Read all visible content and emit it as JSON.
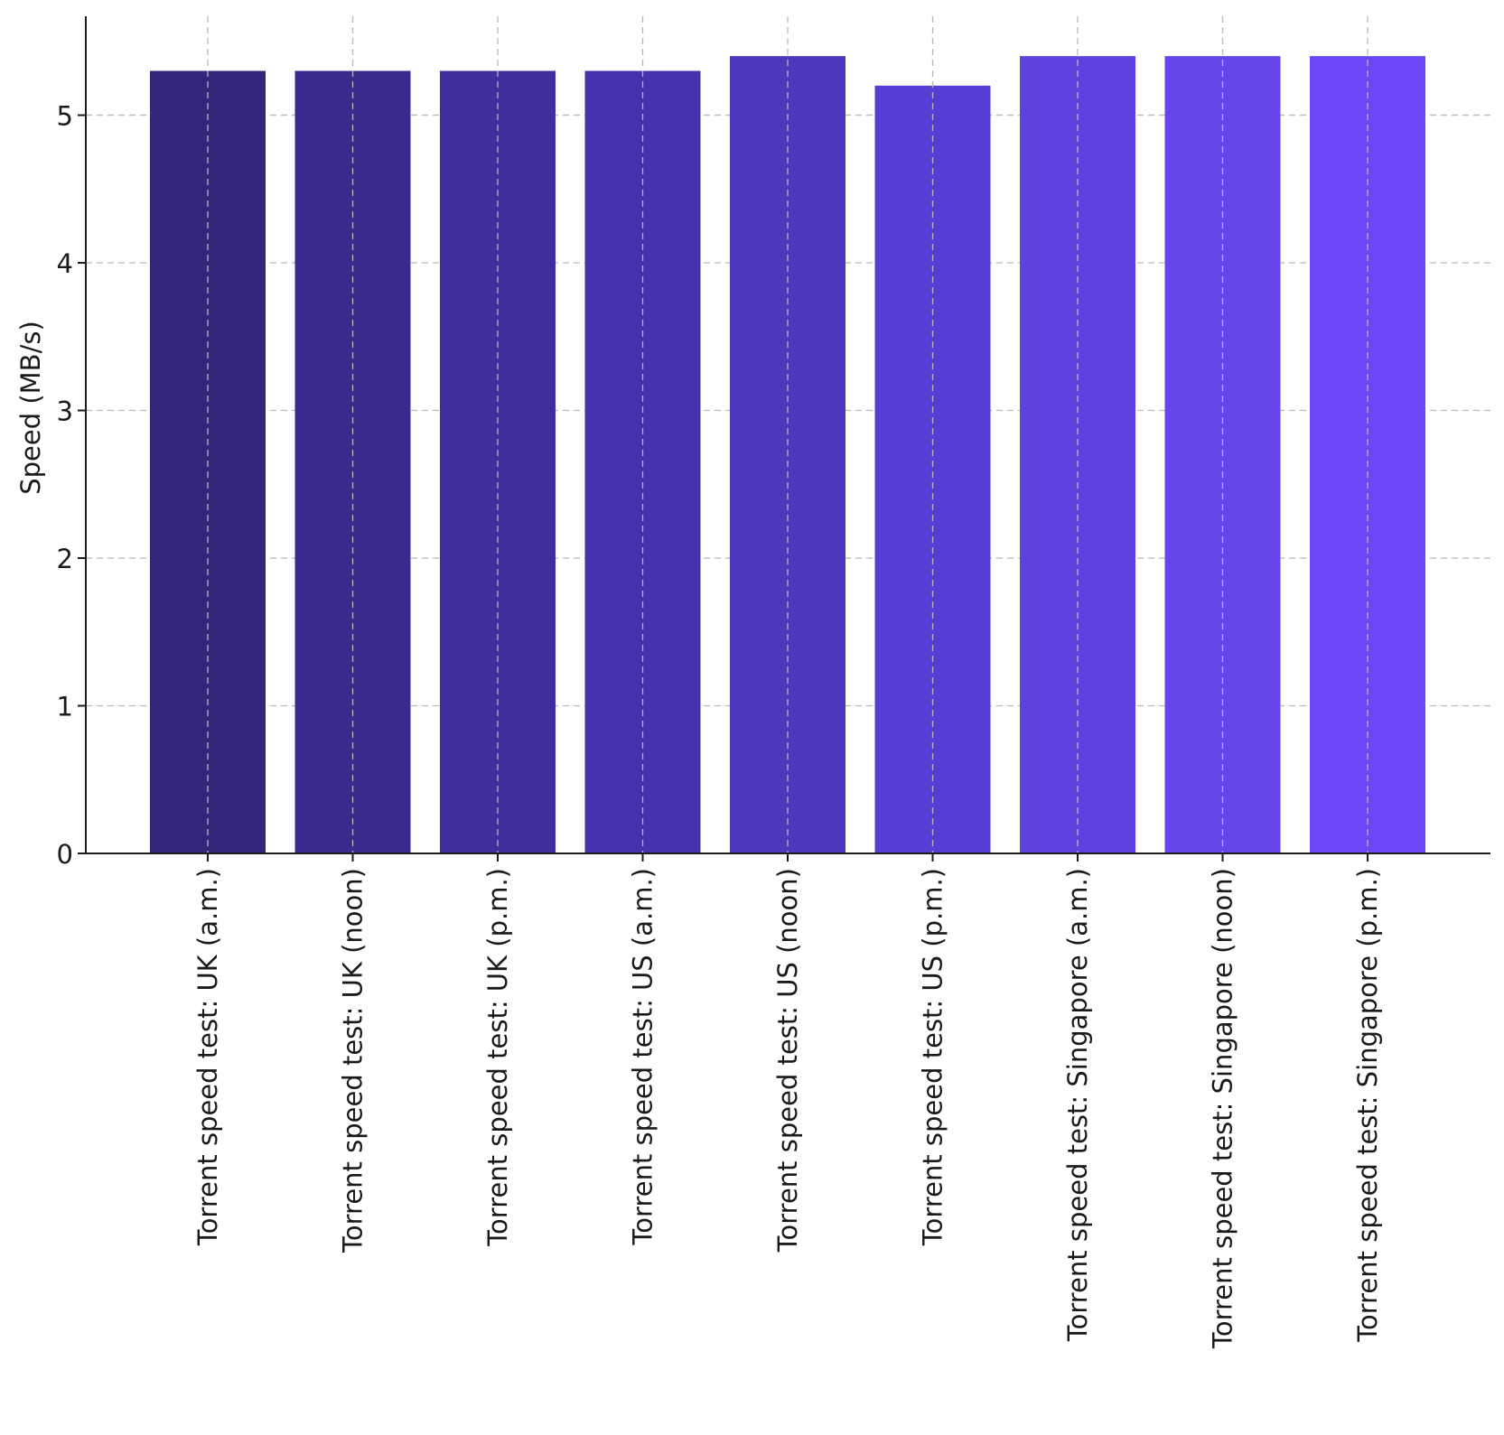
{
  "chart_data": {
    "type": "bar",
    "title": "",
    "xlabel": "",
    "ylabel": "Speed (MB/s)",
    "ylim": [
      0,
      5.67
    ],
    "yticks": [
      0,
      1,
      2,
      3,
      4,
      5
    ],
    "grid": true,
    "categories": [
      "Torrent speed test: UK (a.m.)",
      "Torrent speed test: UK (noon)",
      "Torrent speed test: UK (p.m.)",
      "Torrent speed test: US (a.m.)",
      "Torrent speed test: US (noon)",
      "Torrent speed test: US (p.m.)",
      "Torrent speed test: Singapore (a.m.)",
      "Torrent speed test: Singapore (noon)",
      "Torrent speed test: Singapore (p.m.)"
    ],
    "values": [
      5.3,
      5.3,
      5.3,
      5.3,
      5.4,
      5.2,
      5.4,
      5.4,
      5.4
    ],
    "colors": [
      "#32267a",
      "#392a8d",
      "#3f2e9c",
      "#4531ab",
      "#4e36bd",
      "#583dd4",
      "#5f41e0",
      "#6645eb",
      "#6c47f7"
    ]
  }
}
